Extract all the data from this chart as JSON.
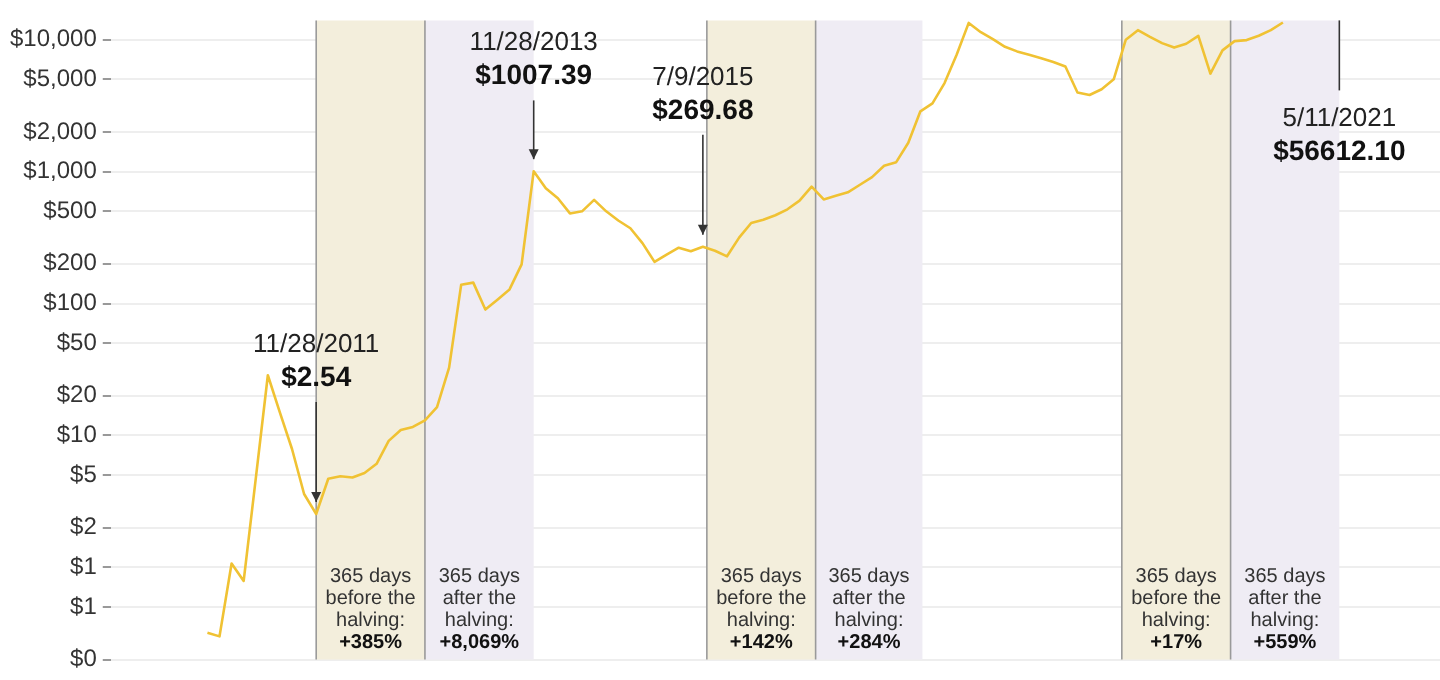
{
  "chart_data": {
    "type": "line",
    "log": "y",
    "grid": "y",
    "legend": false,
    "tick_labels": "y",
    "marker": "none",
    "line_style": "solid",
    "categories": [
      null,
      null,
      null,
      null,
      null,
      null,
      null,
      null,
      null,
      null,
      null,
      null,
      null,
      null,
      null,
      null,
      null,
      null,
      null,
      null,
      null,
      null,
      null,
      null,
      null,
      null,
      null,
      null,
      null,
      null,
      null,
      null,
      null,
      null,
      null,
      null,
      null,
      null,
      null,
      null,
      null,
      null,
      null,
      null,
      null,
      null,
      null,
      null,
      null,
      null,
      null,
      null,
      null,
      null,
      null,
      null,
      null,
      null,
      null,
      null,
      null,
      null,
      null,
      null,
      null,
      null,
      null,
      null,
      null,
      null,
      null,
      null,
      null,
      null,
      null,
      null,
      null,
      null,
      null,
      null,
      null,
      null,
      null,
      null,
      null,
      null,
      null,
      null,
      null,
      null,
      null,
      null,
      null,
      null,
      null,
      null,
      null,
      null,
      null,
      null,
      null,
      null,
      null,
      null,
      null,
      null,
      null,
      null,
      null,
      null,
      null
    ],
    "ylim": [
      0.2,
      14000
    ],
    "yticks": [
      {
        "value": 10000,
        "label": "$10,000"
      },
      {
        "value": 5000,
        "label": "$5,000"
      },
      {
        "value": 2000,
        "label": "$2,000"
      },
      {
        "value": 1000,
        "label": "$1,000"
      },
      {
        "value": 500,
        "label": "$500"
      },
      {
        "value": 200,
        "label": "$200"
      },
      {
        "value": 100,
        "label": "$100"
      },
      {
        "value": 50,
        "label": "$50"
      },
      {
        "value": 20,
        "label": "$20"
      },
      {
        "value": 10,
        "label": "$10"
      },
      {
        "value": 5,
        "label": "$5"
      },
      {
        "value": 2,
        "label": "$2"
      },
      {
        "value": 1,
        "label": "$1"
      },
      {
        "value": 0.5,
        "label": "$1"
      },
      {
        "value": 0.2,
        "label": "$0"
      }
    ],
    "series": [
      {
        "color": "#f0c233",
        "values": [
          null,
          null,
          null,
          null,
          null,
          null,
          null,
          null,
          0.32,
          0.3,
          1.07,
          0.79,
          4.7,
          28.6,
          14.9,
          7.9,
          3.6,
          2.54,
          4.7,
          4.9,
          4.8,
          5.2,
          6.1,
          9.1,
          11,
          11.6,
          13,
          16.4,
          32.7,
          139,
          144,
          90,
          107,
          128,
          198,
          1007.39,
          748,
          628,
          482,
          500,
          611,
          500,
          426,
          372,
          287,
          207,
          235,
          265,
          249,
          269.68,
          251,
          228,
          316,
          408,
          431,
          467,
          518,
          602,
          769,
          615,
          655,
          697,
          795,
          908,
          1108,
          1179,
          1655,
          2865,
          3290,
          4690,
          7687,
          13400,
          11400,
          10100,
          8830,
          8150,
          7687,
          7240,
          6780,
          6270,
          3980,
          3810,
          4210,
          5010,
          10000,
          11800,
          10500,
          9420,
          8710,
          9310,
          10700,
          5530,
          8300,
          9750,
          9930,
          10700,
          11800,
          13500,
          null,
          null,
          null,
          null,
          null,
          null,
          null,
          null,
          null,
          null,
          null,
          null,
          null
        ]
      }
    ],
    "annotations": [
      {
        "text": "11/28/2011\n$2.54",
        "y": 2.54
      },
      {
        "text": "11/28/2013\n$1007.39",
        "y": 1007.39
      },
      {
        "text": "7/9/2015\n$269.68",
        "y": 269.68
      },
      "5/11/2021\n$56612.10",
      "365 days before the halving: +385%",
      "365 days after the halving: +8,069%",
      "365 days before the halving: +142%",
      "365 days after the halving: +284%",
      "365 days before the halving: +17%",
      "365 days after the halving: +559%"
    ]
  }
}
